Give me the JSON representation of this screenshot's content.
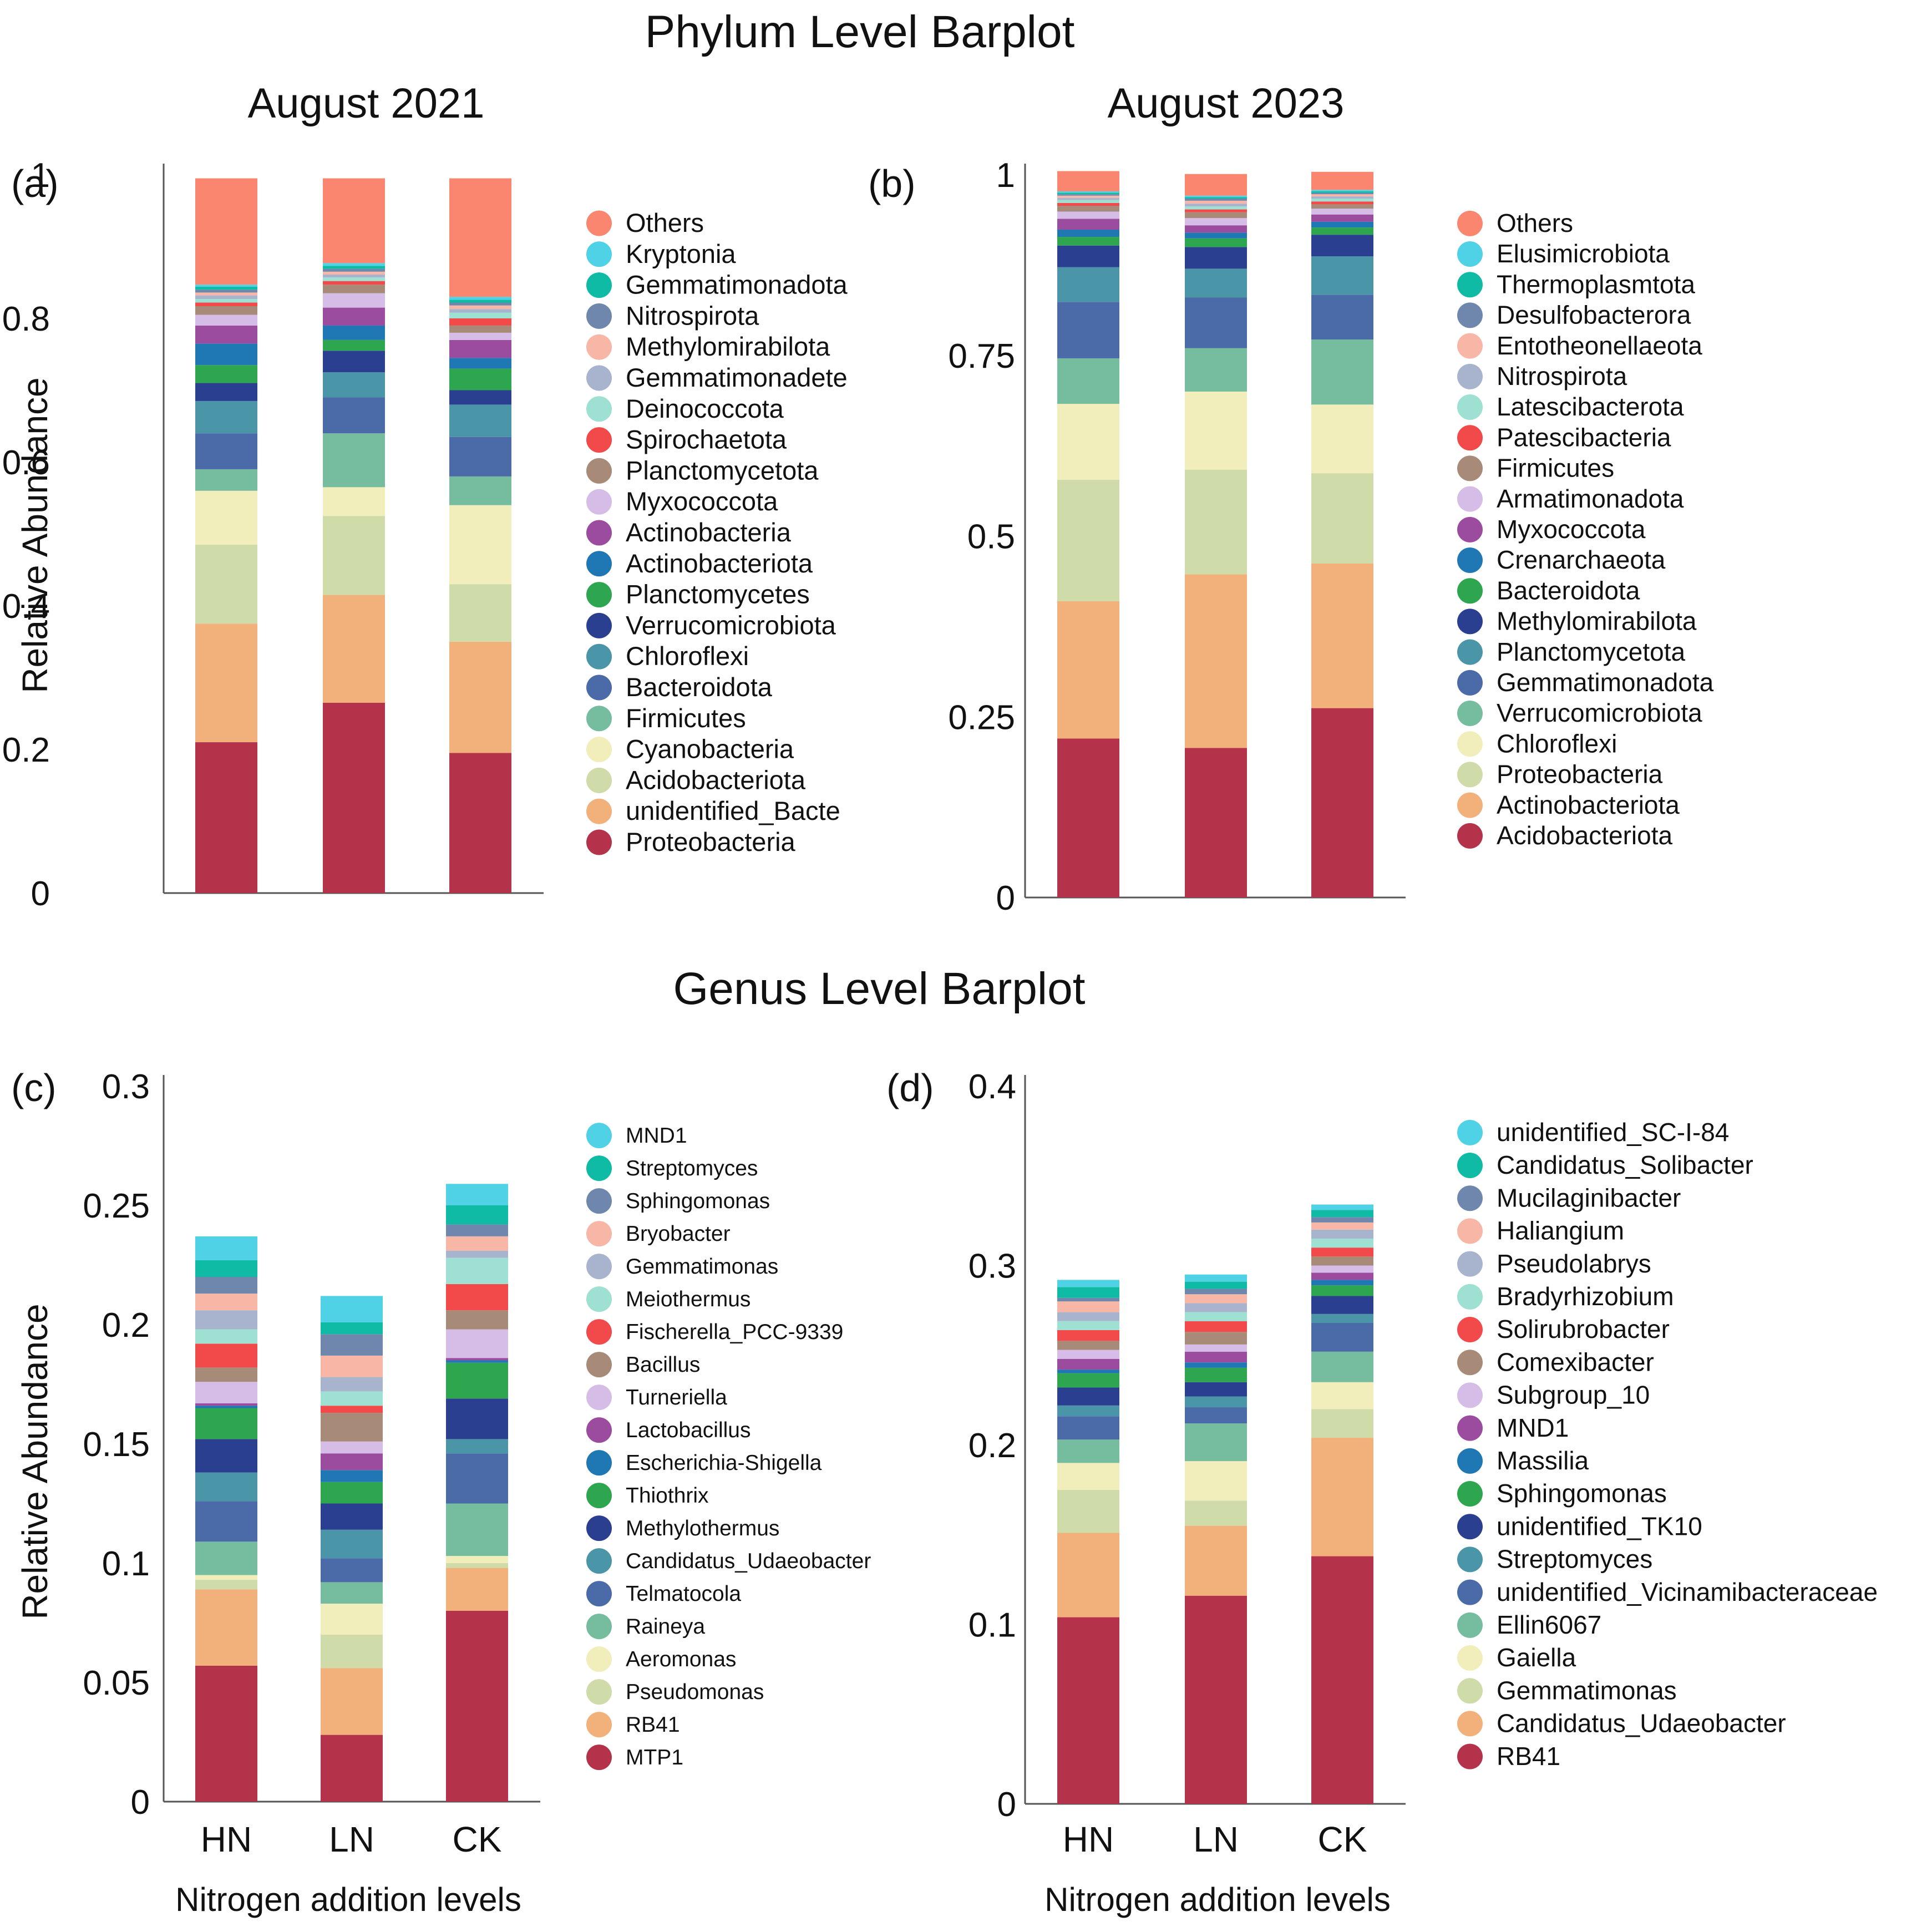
{
  "figure": {
    "phylum_title": "Phylum Level Barplot",
    "genus_title": "Genus Level Barplot",
    "title_2021": "August 2021",
    "title_2023": "August 2023",
    "ylabel": "Relative Abundance",
    "xlabel": "Nitrogen addition levels"
  },
  "chart_data": [
    {
      "type": "bar",
      "stacked": true,
      "panel": "(a)",
      "title": "August 2021",
      "ylabel": "Relative Abundance",
      "xlabel": "",
      "categories": [
        "HN",
        "LN",
        "CK"
      ],
      "show_x_ticks": false,
      "ylim": [
        0,
        1
      ],
      "yticks": [
        0,
        0.2,
        0.4,
        0.6,
        0.8,
        1
      ],
      "ytick_labels": [
        "0",
        "0.2",
        "0.4",
        "0.6",
        "0.8",
        "1"
      ],
      "series": [
        {
          "name": "Proteobacteria",
          "color": "#b5334a",
          "values": [
            0.21,
            0.265,
            0.195
          ]
        },
        {
          "name": "unidentified_Bacte",
          "color": "#f2b07a",
          "values": [
            0.165,
            0.15,
            0.155
          ]
        },
        {
          "name": "Acidobacteriota",
          "color": "#cfdcaa",
          "values": [
            0.11,
            0.11,
            0.08
          ]
        },
        {
          "name": "Cyanobacteria",
          "color": "#f2eebb",
          "values": [
            0.075,
            0.04,
            0.11
          ]
        },
        {
          "name": "Firmicutes",
          "color": "#76bd9f",
          "values": [
            0.03,
            0.075,
            0.04
          ]
        },
        {
          "name": "Bacteroidota",
          "color": "#4a6aa8",
          "values": [
            0.05,
            0.05,
            0.055
          ]
        },
        {
          "name": "Chloroflexi",
          "color": "#4a96a8",
          "values": [
            0.045,
            0.035,
            0.045
          ]
        },
        {
          "name": "Verrucomicrobiota",
          "color": "#2a3f8f",
          "values": [
            0.025,
            0.03,
            0.02
          ]
        },
        {
          "name": "Planctomycetes",
          "color": "#2da64f",
          "values": [
            0.025,
            0.015,
            0.03
          ]
        },
        {
          "name": "Actinobacteriota",
          "color": "#1f77b4",
          "values": [
            0.03,
            0.02,
            0.015
          ]
        },
        {
          "name": "Actinobacteria",
          "color": "#9b4c9f",
          "values": [
            0.025,
            0.025,
            0.025
          ]
        },
        {
          "name": "Myxococcota",
          "color": "#d5bde8",
          "values": [
            0.015,
            0.02,
            0.01
          ]
        },
        {
          "name": "Planctomycetota",
          "color": "#a88a78",
          "values": [
            0.012,
            0.012,
            0.01
          ]
        },
        {
          "name": "Spirochaetota",
          "color": "#f24a4a",
          "values": [
            0.005,
            0.005,
            0.01
          ]
        },
        {
          "name": "Deinococcota",
          "color": "#9ee0d2",
          "values": [
            0.005,
            0.005,
            0.008
          ]
        },
        {
          "name": "Gemmatimonadete",
          "color": "#a8b4ce",
          "values": [
            0.005,
            0.004,
            0.005
          ]
        },
        {
          "name": "Methylomirabilota",
          "color": "#f8b7a6",
          "values": [
            0.004,
            0.004,
            0.005
          ]
        },
        {
          "name": "Nitrospirota",
          "color": "#6f87ad",
          "values": [
            0.004,
            0.004,
            0.004
          ]
        },
        {
          "name": "Gemmatimonadota",
          "color": "#10bba6",
          "values": [
            0.004,
            0.004,
            0.004
          ]
        },
        {
          "name": "Kryptonia",
          "color": "#4fd2e6",
          "values": [
            0.003,
            0.004,
            0.004
          ]
        },
        {
          "name": "Others",
          "color": "#fa8670",
          "values": [
            0.148,
            0.118,
            0.165
          ]
        }
      ],
      "legend_placement": "right"
    },
    {
      "type": "bar",
      "stacked": true,
      "panel": "(b)",
      "title": "August 2023",
      "ylabel": "",
      "xlabel": "",
      "categories": [
        "HN",
        "LN",
        "CK"
      ],
      "show_x_ticks": false,
      "ylim": [
        0,
        1
      ],
      "yticks": [
        0,
        0.25,
        0.5,
        0.75,
        1
      ],
      "ytick_labels": [
        "0",
        "0.25",
        "0.5",
        "0.75",
        "1"
      ],
      "series": [
        {
          "name": "Acidobacteriota",
          "color": "#b5334a",
          "values": [
            0.22,
            0.207,
            0.262
          ]
        },
        {
          "name": "Actinobacteriota",
          "color": "#f2b07a",
          "values": [
            0.19,
            0.24,
            0.2
          ]
        },
        {
          "name": "Proteobacteria",
          "color": "#cfdcaa",
          "values": [
            0.168,
            0.145,
            0.125
          ]
        },
        {
          "name": "Chloroflexi",
          "color": "#f2eebb",
          "values": [
            0.105,
            0.108,
            0.095
          ]
        },
        {
          "name": "Verrucomicrobiota",
          "color": "#76bd9f",
          "values": [
            0.063,
            0.06,
            0.09
          ]
        },
        {
          "name": "Gemmatimonadota",
          "color": "#4a6aa8",
          "values": [
            0.078,
            0.07,
            0.062
          ]
        },
        {
          "name": "Planctomycetota",
          "color": "#4a96a8",
          "values": [
            0.048,
            0.04,
            0.053
          ]
        },
        {
          "name": "Methylomirabilota",
          "color": "#2a3f8f",
          "values": [
            0.03,
            0.03,
            0.03
          ]
        },
        {
          "name": "Bacteroidota",
          "color": "#2da64f",
          "values": [
            0.012,
            0.012,
            0.01
          ]
        },
        {
          "name": "Crenarchaeota",
          "color": "#1f77b4",
          "values": [
            0.01,
            0.008,
            0.008
          ]
        },
        {
          "name": "Myxococcota",
          "color": "#9b4c9f",
          "values": [
            0.015,
            0.01,
            0.01
          ]
        },
        {
          "name": "Armatimonadota",
          "color": "#d5bde8",
          "values": [
            0.01,
            0.01,
            0.008
          ]
        },
        {
          "name": "Firmicutes",
          "color": "#a88a78",
          "values": [
            0.008,
            0.008,
            0.006
          ]
        },
        {
          "name": "Patescibacteria",
          "color": "#f24a4a",
          "values": [
            0.004,
            0.004,
            0.004
          ]
        },
        {
          "name": "Latescibacterota",
          "color": "#9ee0d2",
          "values": [
            0.004,
            0.004,
            0.004
          ]
        },
        {
          "name": "Nitrospirota",
          "color": "#a8b4ce",
          "values": [
            0.003,
            0.004,
            0.003
          ]
        },
        {
          "name": "Entotheonellaeota",
          "color": "#f8b7a6",
          "values": [
            0.003,
            0.004,
            0.003
          ]
        },
        {
          "name": "Desulfobacterora",
          "color": "#6f87ad",
          "values": [
            0.002,
            0.003,
            0.002
          ]
        },
        {
          "name": "Thermoplasmtota",
          "color": "#10bba6",
          "values": [
            0.002,
            0.002,
            0.002
          ]
        },
        {
          "name": "Elusimicrobiota",
          "color": "#4fd2e6",
          "values": [
            0.002,
            0.002,
            0.002
          ]
        },
        {
          "name": "Others",
          "color": "#fa8670",
          "values": [
            0.028,
            0.03,
            0.025
          ]
        }
      ],
      "legend_placement": "right"
    },
    {
      "type": "bar",
      "stacked": true,
      "panel": "(c)",
      "title": "",
      "ylabel": "Relative Abundance",
      "xlabel": "Nitrogen addition levels",
      "categories": [
        "HN",
        "LN",
        "CK"
      ],
      "show_x_ticks": true,
      "ylim": [
        0,
        0.3
      ],
      "yticks": [
        0,
        0.05,
        0.1,
        0.15,
        0.2,
        0.25,
        0.3
      ],
      "ytick_labels": [
        "0",
        "0.05",
        "0.1",
        "0.15",
        "0.2",
        "0.25",
        "0.3"
      ],
      "series": [
        {
          "name": "MTP1",
          "color": "#b5334a",
          "values": [
            0.057,
            0.028,
            0.08
          ]
        },
        {
          "name": "RB41",
          "color": "#f2b07a",
          "values": [
            0.032,
            0.028,
            0.018
          ]
        },
        {
          "name": "Pseudomonas",
          "color": "#cfdcaa",
          "values": [
            0.004,
            0.014,
            0.002
          ]
        },
        {
          "name": "Aeromonas",
          "color": "#f2eebb",
          "values": [
            0.002,
            0.013,
            0.003
          ]
        },
        {
          "name": "Raineya",
          "color": "#76bd9f",
          "values": [
            0.014,
            0.009,
            0.022
          ]
        },
        {
          "name": "Telmatocola",
          "color": "#4a6aa8",
          "values": [
            0.017,
            0.01,
            0.021
          ]
        },
        {
          "name": "Candidatus_Udaeobacter",
          "color": "#4a96a8",
          "values": [
            0.012,
            0.012,
            0.006
          ]
        },
        {
          "name": "Methylothermus",
          "color": "#2a3f8f",
          "values": [
            0.014,
            0.011,
            0.017
          ]
        },
        {
          "name": "Thiothrix",
          "color": "#2da64f",
          "values": [
            0.013,
            0.009,
            0.015
          ]
        },
        {
          "name": "Escherichia-Shigella",
          "color": "#1f77b4",
          "values": [
            0.001,
            0.005,
            0.001
          ]
        },
        {
          "name": "Lactobacillus",
          "color": "#9b4c9f",
          "values": [
            0.001,
            0.007,
            0.001
          ]
        },
        {
          "name": "Turneriella",
          "color": "#d5bde8",
          "values": [
            0.009,
            0.005,
            0.012
          ]
        },
        {
          "name": "Bacillus",
          "color": "#a88a78",
          "values": [
            0.006,
            0.012,
            0.008
          ]
        },
        {
          "name": "Fischerella_PCC-9339",
          "color": "#f24a4a",
          "values": [
            0.01,
            0.003,
            0.011
          ]
        },
        {
          "name": "Meiothermus",
          "color": "#9ee0d2",
          "values": [
            0.006,
            0.006,
            0.011
          ]
        },
        {
          "name": "Gemmatimonas",
          "color": "#a8b4ce",
          "values": [
            0.008,
            0.006,
            0.003
          ]
        },
        {
          "name": "Bryobacter",
          "color": "#f8b7a6",
          "values": [
            0.007,
            0.009,
            0.006
          ]
        },
        {
          "name": "Sphingomonas",
          "color": "#6f87ad",
          "values": [
            0.007,
            0.009,
            0.005
          ]
        },
        {
          "name": "Streptomyces",
          "color": "#10bba6",
          "values": [
            0.007,
            0.005,
            0.008
          ]
        },
        {
          "name": "MND1",
          "color": "#4fd2e6",
          "values": [
            0.01,
            0.011,
            0.009
          ]
        }
      ],
      "legend_placement": "right"
    },
    {
      "type": "bar",
      "stacked": true,
      "panel": "(d)",
      "title": "",
      "ylabel": "",
      "xlabel": "Nitrogen addition levels",
      "categories": [
        "HN",
        "LN",
        "CK"
      ],
      "show_x_ticks": true,
      "ylim": [
        0,
        0.4
      ],
      "yticks": [
        0,
        0.1,
        0.2,
        0.3,
        0.4
      ],
      "ytick_labels": [
        "0",
        "0.1",
        "0.2",
        "0.3",
        "0.4"
      ],
      "series": [
        {
          "name": "RB41",
          "color": "#b5334a",
          "values": [
            0.104,
            0.116,
            0.138
          ]
        },
        {
          "name": "Candidatus_Udaeobacter",
          "color": "#f2b07a",
          "values": [
            0.047,
            0.039,
            0.066
          ]
        },
        {
          "name": "Gemmatimonas",
          "color": "#cfdcaa",
          "values": [
            0.024,
            0.014,
            0.016
          ]
        },
        {
          "name": "Gaiella",
          "color": "#f2eebb",
          "values": [
            0.015,
            0.022,
            0.015
          ]
        },
        {
          "name": "Ellin6067",
          "color": "#76bd9f",
          "values": [
            0.013,
            0.021,
            0.017
          ]
        },
        {
          "name": "unidentified_Vicinamibacteraceae",
          "color": "#4a6aa8",
          "values": [
            0.013,
            0.009,
            0.016
          ]
        },
        {
          "name": "Streptomyces",
          "color": "#4a96a8",
          "values": [
            0.006,
            0.006,
            0.005
          ]
        },
        {
          "name": "unidentified_TK10",
          "color": "#2a3f8f",
          "values": [
            0.01,
            0.008,
            0.01
          ]
        },
        {
          "name": "Sphingomonas",
          "color": "#2da64f",
          "values": [
            0.008,
            0.008,
            0.006
          ]
        },
        {
          "name": "Massilia",
          "color": "#1f77b4",
          "values": [
            0.002,
            0.003,
            0.003
          ]
        },
        {
          "name": "MND1",
          "color": "#9b4c9f",
          "values": [
            0.006,
            0.006,
            0.004
          ]
        },
        {
          "name": "Subgroup_10",
          "color": "#d5bde8",
          "values": [
            0.005,
            0.004,
            0.004
          ]
        },
        {
          "name": "Comexibacter",
          "color": "#a88a78",
          "values": [
            0.005,
            0.007,
            0.005
          ]
        },
        {
          "name": "Solirubrobacter",
          "color": "#f24a4a",
          "values": [
            0.006,
            0.006,
            0.005
          ]
        },
        {
          "name": "Bradyrhizobium",
          "color": "#9ee0d2",
          "values": [
            0.005,
            0.005,
            0.005
          ]
        },
        {
          "name": "Pseudolabrys",
          "color": "#a8b4ce",
          "values": [
            0.005,
            0.005,
            0.005
          ]
        },
        {
          "name": "Haliangium",
          "color": "#f8b7a6",
          "values": [
            0.006,
            0.005,
            0.004
          ]
        },
        {
          "name": "Mucilaginibacter",
          "color": "#6f87ad",
          "values": [
            0.002,
            0.003,
            0.003
          ]
        },
        {
          "name": "Candidatus_Solibacter",
          "color": "#10bba6",
          "values": [
            0.006,
            0.004,
            0.004
          ]
        },
        {
          "name": "unidentified_SC-I-84",
          "color": "#4fd2e6",
          "values": [
            0.004,
            0.004,
            0.003
          ]
        }
      ],
      "legend_placement": "right"
    }
  ]
}
